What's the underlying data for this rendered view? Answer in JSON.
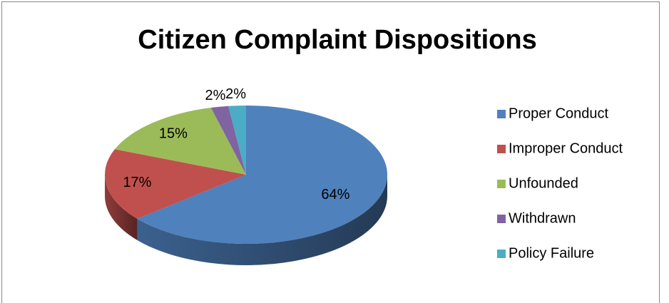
{
  "chart_data": {
    "type": "pie",
    "title": "Citizen Complaint Dispositions",
    "categories": [
      "Proper Conduct",
      "Improper Conduct",
      "Unfounded",
      "Withdrawn",
      "Policy Failure"
    ],
    "values": [
      64,
      17,
      15,
      2,
      2
    ],
    "value_labels": [
      "64%",
      "17%",
      "15%",
      "2%",
      "2%"
    ],
    "colors": [
      "#4f81bd",
      "#c0504d",
      "#9bbb59",
      "#8064a2",
      "#4bacc6"
    ],
    "legend": "right"
  }
}
